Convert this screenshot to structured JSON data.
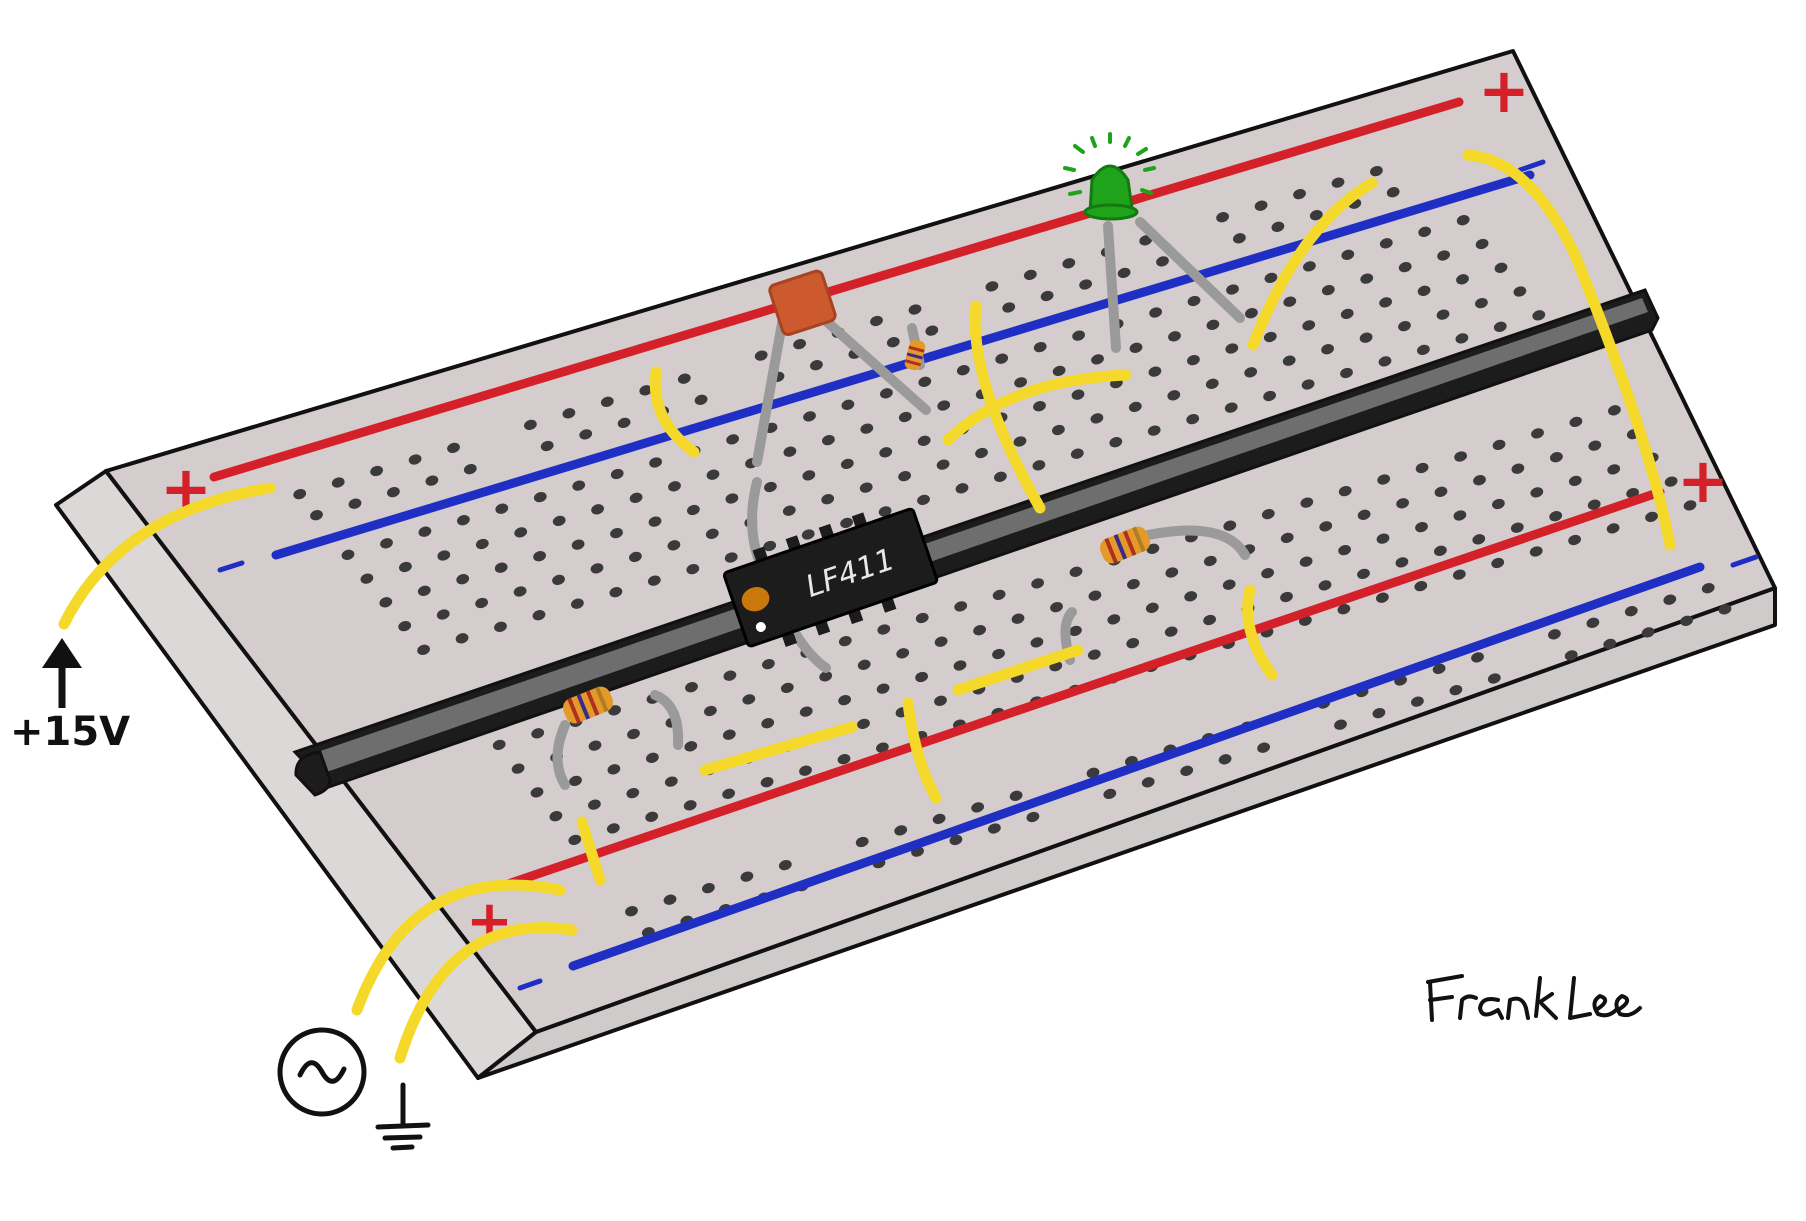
{
  "chip": {
    "label": "LF411"
  },
  "power": {
    "supply_label": "+15V"
  },
  "rails": {
    "plus_symbol": "+",
    "minus_symbol": "-"
  },
  "signature": {
    "text": "Frank Lee",
    "as_picture": true
  },
  "symbols": {
    "ac_source": "ac-source-icon",
    "ground": "ground-icon",
    "arrow": "up-arrow-icon"
  },
  "colors": {
    "board": "#d5cccd",
    "board_edge": "#e2dede",
    "hole": "#3a3a3a",
    "rail_positive": "#d42028",
    "rail_negative": "#1f2fc4",
    "channel": "#1c1c1c",
    "channel_inner": "#6e6e6e",
    "jumper": "#f5d92a",
    "lead": "#9a9a9a",
    "chip_body": "#1c1c1c",
    "chip_dot": "#c9780c",
    "capacitor": "#cc5a2e",
    "led": "#1fa31a",
    "resistor": "#e39a2a"
  }
}
